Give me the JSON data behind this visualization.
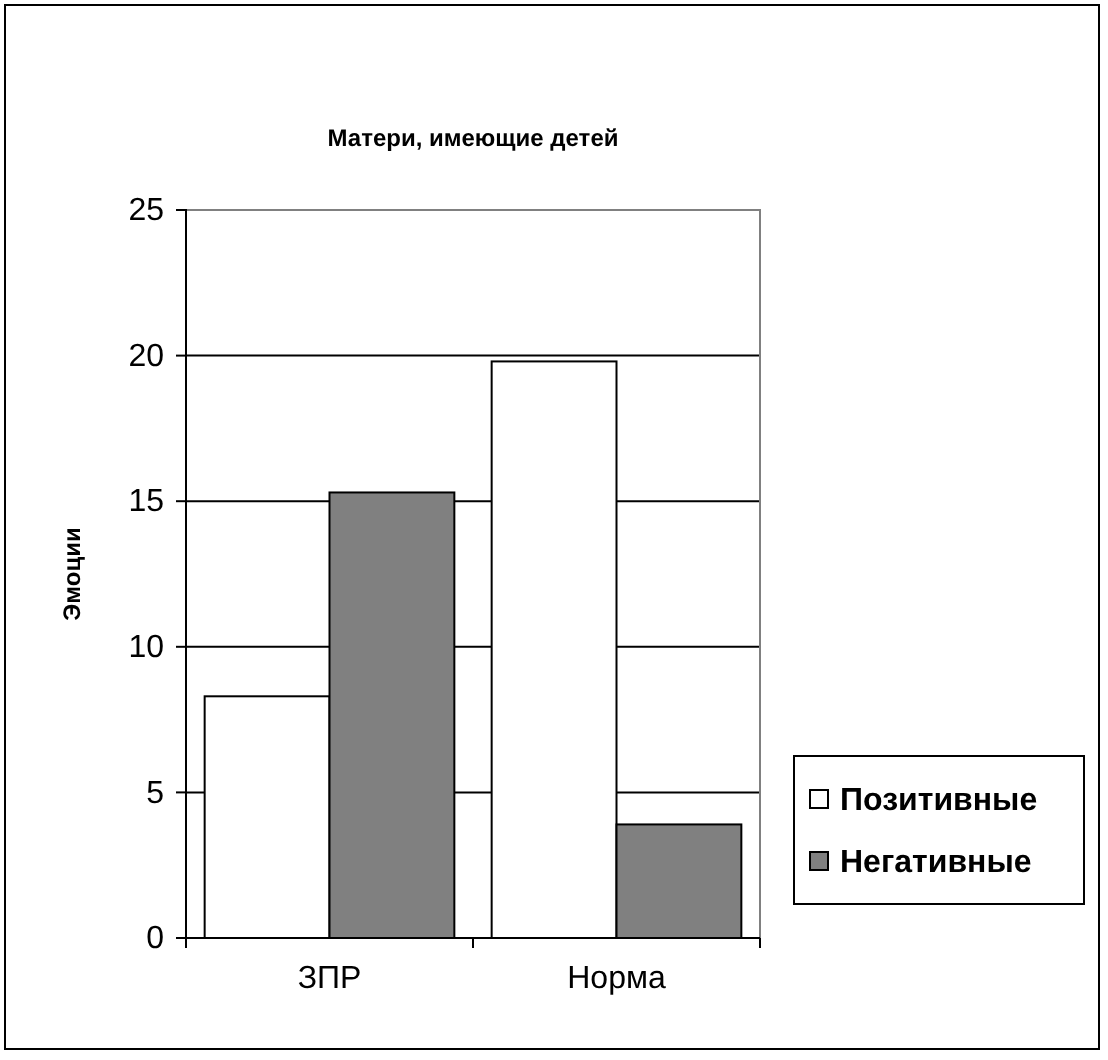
{
  "chart_data": {
    "type": "bar",
    "title": "Матери, имеющие детей",
    "ylabel": "Эмоции",
    "categories": [
      "ЗПР",
      "Норма"
    ],
    "series": [
      {
        "name": "Позитивные",
        "color": "#ffffff",
        "values": [
          8.3,
          19.8
        ]
      },
      {
        "name": "Негативные",
        "color": "#808080",
        "values": [
          15.3,
          3.9
        ]
      }
    ],
    "ylim": [
      0,
      25
    ],
    "yticks": [
      0,
      5,
      10,
      15,
      20,
      25
    ],
    "grid": "y",
    "legend": "right"
  }
}
